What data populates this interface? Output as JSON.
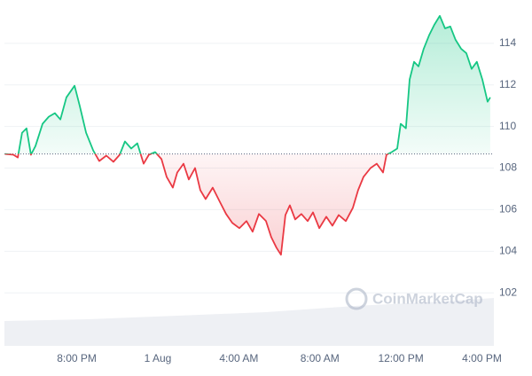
{
  "chart_data": {
    "type": "line",
    "watermark": "CoinMarketCap",
    "x": [
      -7.55,
      -7.13,
      -6.91,
      -6.7,
      -6.48,
      -6.26,
      -6.04,
      -5.69,
      -5.38,
      -5.08,
      -4.81,
      -4.51,
      -4.11,
      -3.85,
      -3.54,
      -3.19,
      -2.89,
      -2.54,
      -2.19,
      -1.88,
      -1.62,
      -1.31,
      -1.01,
      -0.7,
      -0.44,
      -0.13,
      0.18,
      0.44,
      0.74,
      0.96,
      1.27,
      1.53,
      1.84,
      2.1,
      2.36,
      2.71,
      3.06,
      3.37,
      3.68,
      4.03,
      4.38,
      4.68,
      4.99,
      5.34,
      5.6,
      5.86,
      6.08,
      6.3,
      6.52,
      6.78,
      7.09,
      7.4,
      7.66,
      7.97,
      8.32,
      8.62,
      8.93,
      9.28,
      9.63,
      9.89,
      10.15,
      10.5,
      10.81,
      11.12,
      11.29,
      11.55,
      11.82,
      11.99,
      12.25,
      12.43,
      12.65,
      12.87,
      13.13,
      13.39,
      13.65,
      13.92,
      14.18,
      14.44,
      14.7,
      14.97,
      15.23,
      15.49,
      15.75,
      16.02,
      16.28,
      16.41
    ],
    "series": [
      {
        "values": [
          108.68,
          108.64,
          108.51,
          109.7,
          109.91,
          108.64,
          109.06,
          110.13,
          110.47,
          110.64,
          110.34,
          111.4,
          111.96,
          110.98,
          109.7,
          108.85,
          108.34,
          108.6,
          108.3,
          108.64,
          109.28,
          108.94,
          109.19,
          108.21,
          108.64,
          108.77,
          108.43,
          107.57,
          107.06,
          107.79,
          108.21,
          107.45,
          108.0,
          106.94,
          106.51,
          107.06,
          106.38,
          105.79,
          105.36,
          105.11,
          105.45,
          104.94,
          105.79,
          105.45,
          104.68,
          104.17,
          103.83,
          105.74,
          106.21,
          105.53,
          105.79,
          105.45,
          105.87,
          105.11,
          105.66,
          105.23,
          105.74,
          105.45,
          106.09,
          106.94,
          107.57,
          108.0,
          108.21,
          107.79,
          108.64,
          108.77,
          108.94,
          110.13,
          109.91,
          112.26,
          113.11,
          112.89,
          113.74,
          114.38,
          114.89,
          115.32,
          114.72,
          114.81,
          114.17,
          113.74,
          113.53,
          112.77,
          113.11,
          112.26,
          111.19,
          111.4
        ]
      }
    ],
    "baseline": 108.68,
    "colors": {
      "above": "#16c784",
      "below": "#ea3943"
    },
    "xlim": [
      -7.57,
      16.59
    ],
    "xticks": [
      {
        "value": -4,
        "label": "8:00 PM"
      },
      {
        "value": 0,
        "label": "1 Aug"
      },
      {
        "value": 4,
        "label": "4:00 AM"
      },
      {
        "value": 8,
        "label": "8:00 AM"
      },
      {
        "value": 12,
        "label": "12:00 PM"
      },
      {
        "value": 16,
        "label": "4:00 PM"
      }
    ],
    "ylim": [
      99.45,
      115.87
    ],
    "yticks": [
      102,
      104,
      106,
      108,
      110,
      112,
      114
    ],
    "grid": true
  }
}
